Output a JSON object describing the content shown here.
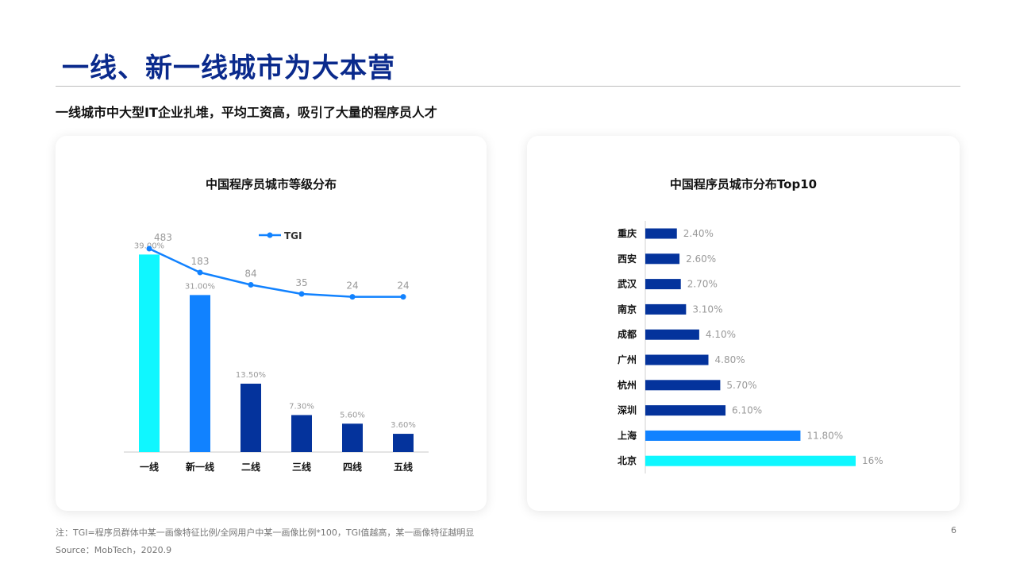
{
  "page": {
    "title": "一线、新一线城市为大本营",
    "subtitle": "一线城市中大型IT企业扎堆，平均工资高，吸引了大量的程序员人才",
    "note": "注：TGI=程序员群体中某一画像特征比例/全网用户中某一画像比例*100，TGI值越高，某一画像特征越明显",
    "source": "Source：MobTech，2020.9",
    "page_number": "6"
  },
  "colors": {
    "title": "#0a2a8c",
    "cyan": "#0ff7ff",
    "blue": "#1182ff",
    "navy": "#04339c",
    "line": "#1182ff"
  },
  "chart_data": [
    {
      "type": "bar",
      "title": "中国程序员城市等级分布",
      "categories": [
        "一线",
        "新一线",
        "二线",
        "三线",
        "四线",
        "五线"
      ],
      "values": [
        39.0,
        31.0,
        13.5,
        7.3,
        5.6,
        3.6
      ],
      "value_labels": [
        "39.00%",
        "31.00%",
        "13.50%",
        "7.30%",
        "5.60%",
        "3.60%"
      ],
      "bar_colors": [
        "#0ff7ff",
        "#1182ff",
        "#04339c",
        "#04339c",
        "#04339c",
        "#04339c"
      ],
      "ylim": [
        0,
        40
      ],
      "line_series": {
        "name": "TGI",
        "values": [
          483,
          183,
          84,
          35,
          24,
          24
        ],
        "labels": [
          "483",
          "183",
          "84",
          "35",
          "24",
          "24"
        ]
      },
      "legend": "top-center",
      "grid": false
    },
    {
      "type": "bar",
      "orientation": "horizontal",
      "title": "中国程序员城市分布Top10",
      "categories": [
        "重庆",
        "西安",
        "武汉",
        "南京",
        "成都",
        "广州",
        "杭州",
        "深圳",
        "上海",
        "北京"
      ],
      "values": [
        2.4,
        2.6,
        2.7,
        3.1,
        4.1,
        4.8,
        5.7,
        6.1,
        11.8,
        16
      ],
      "value_labels": [
        "2.40%",
        "2.60%",
        "2.70%",
        "3.10%",
        "4.10%",
        "4.80%",
        "5.70%",
        "6.10%",
        "11.80%",
        "16%"
      ],
      "bar_colors": [
        "#04339c",
        "#04339c",
        "#04339c",
        "#04339c",
        "#04339c",
        "#04339c",
        "#04339c",
        "#04339c",
        "#1182ff",
        "#0ff7ff"
      ],
      "xlim": [
        0,
        16
      ],
      "grid": false
    }
  ]
}
